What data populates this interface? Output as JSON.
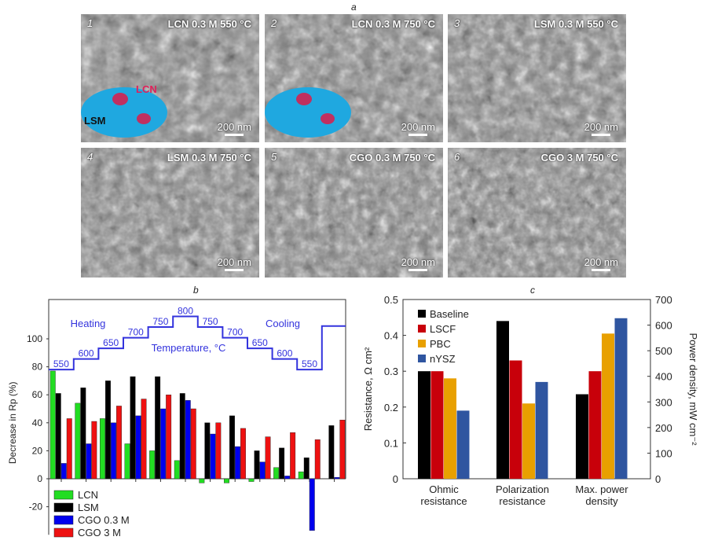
{
  "panel_labels": {
    "a": "a",
    "b": "b",
    "c": "c"
  },
  "sem_images": [
    {
      "number": "1",
      "title": "LCN 0.3 M 550 °C",
      "scale": "200 nm",
      "overlay": true,
      "overlay_labels": {
        "top": "LCN",
        "bottom": "LSM"
      }
    },
    {
      "number": "2",
      "title": "LCN 0.3 M 750 °C",
      "scale": "200 nm",
      "overlay": true
    },
    {
      "number": "3",
      "title": "LSM 0.3 M 550 °C",
      "scale": "200 nm",
      "overlay": false
    },
    {
      "number": "4",
      "title": "LSM 0.3 M 750 °C",
      "scale": "200 nm",
      "overlay": false
    },
    {
      "number": "5",
      "title": "CGO 0.3 M 750 °C",
      "scale": "200 nm",
      "overlay": false
    },
    {
      "number": "6",
      "title": "CGO 3 M 750 °C",
      "scale": "200 nm",
      "overlay": false
    }
  ],
  "chart_data": [
    {
      "type": "bar",
      "ylabel": "Decrease in Rp (%)",
      "ylim": [
        -40,
        128
      ],
      "yticks": [
        -20,
        0,
        20,
        40,
        60,
        80,
        100
      ],
      "series": [
        {
          "name": "LCN",
          "color": "#22dd22",
          "values": [
            77,
            54,
            43,
            25,
            20,
            13,
            -3,
            -3,
            -2,
            8,
            5,
            null
          ]
        },
        {
          "name": "LSM",
          "color": "#000000",
          "values": [
            61,
            65,
            70,
            73,
            73,
            61,
            40,
            45,
            20,
            22,
            15,
            38
          ]
        },
        {
          "name": "CGO 0.3 M",
          "color": "#0000ee",
          "values": [
            11,
            25,
            40,
            45,
            50,
            56,
            32,
            23,
            12,
            2,
            -37,
            1
          ]
        },
        {
          "name": "CGO 3 M",
          "color": "#ee1111",
          "values": [
            43,
            41,
            52,
            57,
            60,
            50,
            40,
            36,
            30,
            33,
            28,
            42
          ]
        }
      ],
      "legend_position": "bottom-left",
      "temperature_profile": {
        "color": "#3333dd",
        "label": "Temperature, °C",
        "heating_label": "Heating",
        "cooling_label": "Cooling",
        "steps": [
          "550",
          "600",
          "650",
          "700",
          "750",
          "800",
          "750",
          "700",
          "650",
          "600",
          "550",
          ""
        ],
        "levels": [
          550,
          600,
          650,
          700,
          750,
          800,
          750,
          700,
          650,
          600,
          550,
          755
        ]
      }
    },
    {
      "type": "bar",
      "categories": [
        "Ohmic resistance",
        "Polarization resistance",
        "Max. power density"
      ],
      "category_lines": [
        [
          "Ohmic",
          "resistance"
        ],
        [
          "Polarization",
          "resistance"
        ],
        [
          "Max. power",
          "density"
        ]
      ],
      "ylabel": "Resistance, Ω cm²",
      "ylabel_right": "Power density, mW cm⁻²",
      "ylim": [
        0,
        0.5
      ],
      "ylim_right": [
        0,
        700
      ],
      "yticks": [
        "0",
        "0.1",
        "0.2",
        "0.3",
        "0.4",
        "0.5"
      ],
      "yticks_right": [
        "0",
        "100",
        "200",
        "300",
        "400",
        "500",
        "600",
        "700"
      ],
      "series": [
        {
          "name": "Baseline",
          "color": "#000000",
          "values": [
            0.3,
            0.44,
            330
          ]
        },
        {
          "name": "LSCF",
          "color": "#c8000a",
          "values": [
            0.3,
            0.33,
            420
          ]
        },
        {
          "name": "PBC",
          "color": "#e8a000",
          "values": [
            0.28,
            0.21,
            567
          ]
        },
        {
          "name": "nYSZ",
          "color": "#2f55a0",
          "values": [
            0.19,
            0.27,
            627
          ]
        }
      ],
      "value_axes": [
        "left",
        "left",
        "right"
      ],
      "legend_position": "top-left"
    }
  ]
}
